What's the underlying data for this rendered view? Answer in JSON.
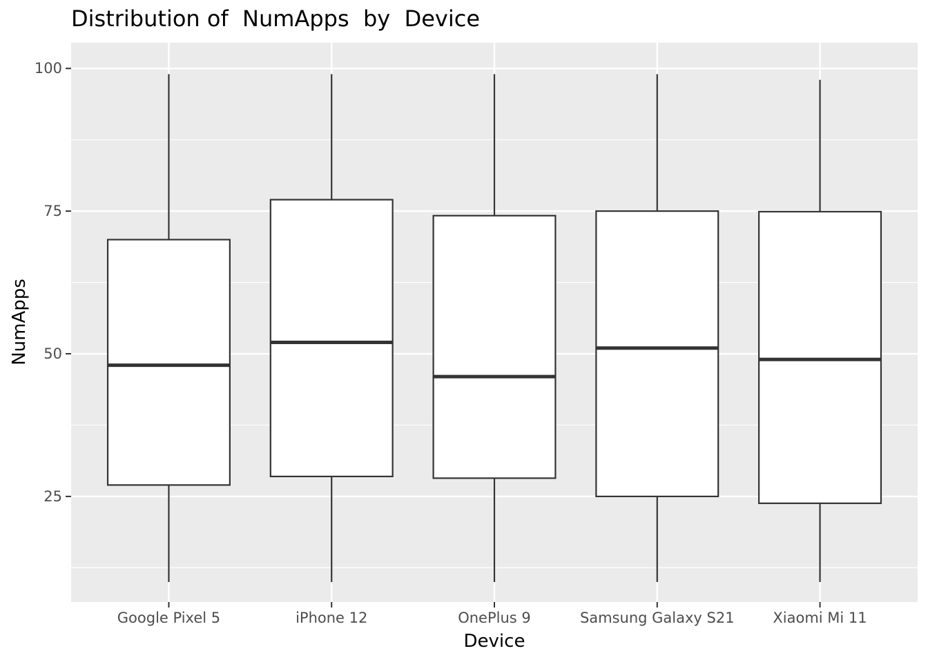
{
  "chart_data": {
    "type": "boxplot",
    "title": "Distribution of  NumApps  by  Device",
    "xlabel": "Device",
    "ylabel": "NumApps",
    "ylim": [
      6.5,
      104.5
    ],
    "yticks": [
      25,
      50,
      75,
      100
    ],
    "grid": true,
    "legend": "none",
    "colors": {
      "panel_background": "#ebebeb",
      "grid_line": "#ffffff",
      "box_fill": "#ffffff",
      "box_stroke": "#333333",
      "tick_text": "#4d4d4d"
    },
    "categories": [
      "Google Pixel 5",
      "iPhone 12",
      "OnePlus 9",
      "Samsung Galaxy S21",
      "Xiaomi Mi 11"
    ],
    "boxes": [
      {
        "category": "Google Pixel 5",
        "min": 10,
        "q1": 27.0,
        "median": 48,
        "q3": 70.0,
        "max": 99
      },
      {
        "category": "iPhone 12",
        "min": 10,
        "q1": 28.5,
        "median": 52,
        "q3": 77.0,
        "max": 99
      },
      {
        "category": "OnePlus 9",
        "min": 10,
        "q1": 28.2,
        "median": 46,
        "q3": 74.2,
        "max": 99
      },
      {
        "category": "Samsung Galaxy S21",
        "min": 10,
        "q1": 25.0,
        "median": 51,
        "q3": 75.0,
        "max": 99
      },
      {
        "category": "Xiaomi Mi 11",
        "min": 10,
        "q1": 23.8,
        "median": 49,
        "q3": 74.9,
        "max": 98
      }
    ]
  }
}
